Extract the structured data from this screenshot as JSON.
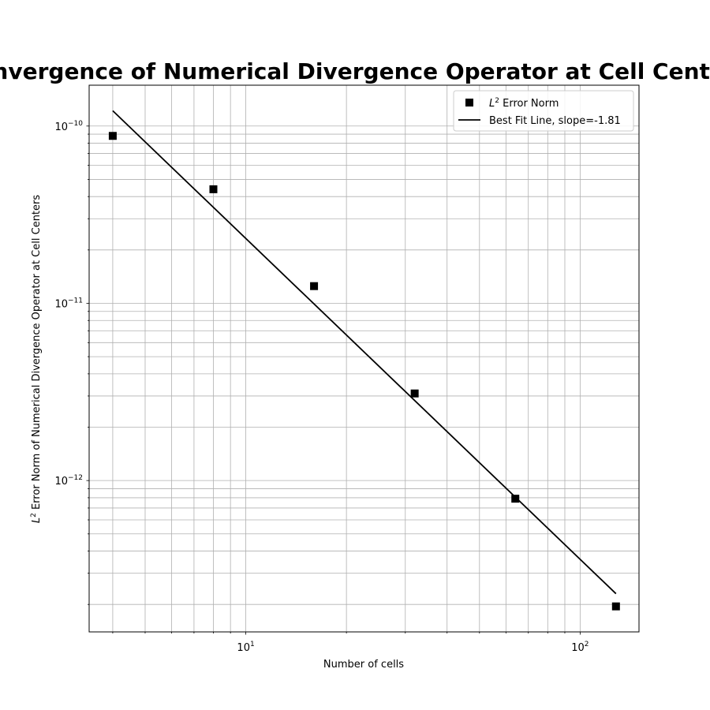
{
  "chart_data": {
    "type": "scatter",
    "title": "Convergence of Numerical Divergence Operator at Cell Centers",
    "xlabel": "Number of cells",
    "ylabel": "L² Error Norm of Numerical Divergence Operator at Cell Centers",
    "x_scale": "log",
    "y_scale": "log",
    "xlim": [
      3.4,
      150
    ],
    "ylim": [
      1.4e-13,
      1.7e-10
    ],
    "grid": true,
    "legend_position": "upper-right",
    "x_ticks": [
      {
        "value": 10,
        "base": "10",
        "exp": "1"
      },
      {
        "value": 100,
        "base": "10",
        "exp": "2"
      }
    ],
    "y_ticks": [
      {
        "value": 1e-12,
        "base": "10",
        "exp": "−12"
      },
      {
        "value": 1e-11,
        "base": "10",
        "exp": "−11"
      },
      {
        "value": 1e-10,
        "base": "10",
        "exp": "−10"
      }
    ],
    "series": [
      {
        "name": "L² Error Norm",
        "kind": "points",
        "marker": "square",
        "color": "#000000",
        "x": [
          4,
          8,
          16,
          32,
          64,
          128
        ],
        "y": [
          8.8e-11,
          4.4e-11,
          1.25e-11,
          3.1e-12,
          7.9e-13,
          1.95e-13
        ]
      },
      {
        "name": "Best Fit Line, slope=-1.81",
        "kind": "line",
        "color": "#000000",
        "x": [
          4,
          128
        ],
        "y": [
          1.22e-10,
          2.3e-13
        ]
      }
    ]
  }
}
